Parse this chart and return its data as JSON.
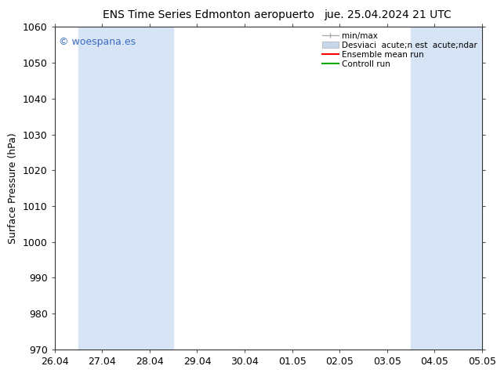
{
  "title_left": "ENS Time Series Edmonton aeropuerto",
  "title_right": "jue. 25.04.2024 21 UTC",
  "ylabel": "Surface Pressure (hPa)",
  "ylim": [
    970,
    1060
  ],
  "yticks": [
    970,
    980,
    990,
    1000,
    1010,
    1020,
    1030,
    1040,
    1050,
    1060
  ],
  "xlim_start": 0,
  "xlim_end": 9,
  "xtick_labels": [
    "26.04",
    "27.04",
    "28.04",
    "29.04",
    "30.04",
    "01.05",
    "02.05",
    "03.05",
    "04.05",
    "05.05"
  ],
  "xtick_positions": [
    0,
    1,
    2,
    3,
    4,
    5,
    6,
    7,
    8,
    9
  ],
  "shaded_bands": [
    {
      "x_start": 0.5,
      "x_end": 1.5
    },
    {
      "x_start": 1.5,
      "x_end": 2.5
    },
    {
      "x_start": 7.5,
      "x_end": 8.5
    },
    {
      "x_start": 8.5,
      "x_end": 9.0
    }
  ],
  "shaded_color": "#d6e4f5",
  "watermark": "© woespana.es",
  "watermark_color": "#3a6bc4",
  "legend_label_minmax": "min/max",
  "legend_label_desv": "Desviaci  acute;n est  acute;ndar",
  "legend_label_ens": "Ensemble mean run",
  "legend_label_ctrl": "Controll run",
  "legend_color_minmax": "#aaaaaa",
  "legend_color_desv": "#c8d8ec",
  "legend_color_ens": "#ff0000",
  "legend_color_ctrl": "#00aa00",
  "bg_color": "#ffffff",
  "title_fontsize": 10,
  "axis_fontsize": 9,
  "tick_fontsize": 9,
  "watermark_fontsize": 9
}
